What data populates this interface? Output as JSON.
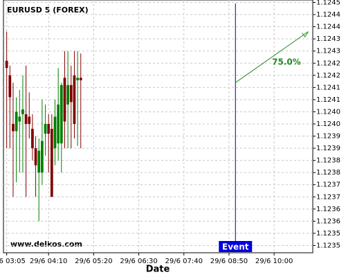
{
  "chart_data": {
    "type": "candlestick",
    "title": "EURUSD 5 (FOREX)",
    "watermark": "www.delkos.com",
    "x_label": "Date",
    "x": [
      "29/6 03:05",
      "29/6 03:10",
      "29/6 03:15",
      "29/6 03:20",
      "29/6 03:25",
      "29/6 03:30",
      "29/6 03:35",
      "29/6 03:40",
      "29/6 03:45",
      "29/6 03:50",
      "29/6 03:55",
      "29/6 04:00",
      "29/6 04:05",
      "29/6 04:10",
      "29/6 04:15",
      "29/6 04:20",
      "29/6 04:25",
      "29/6 04:30",
      "29/6 04:35",
      "29/6 04:40",
      "29/6 04:45",
      "29/6 04:50",
      "29/6 04:55",
      "29/6 05:00"
    ],
    "open": [
      1.12426,
      1.1242,
      1.124,
      1.12397,
      1.12401,
      1.12404,
      1.12404,
      1.12403,
      1.12398,
      1.1239,
      1.1238,
      1.1238,
      1.12396,
      1.124,
      1.12398,
      1.1239,
      1.12392,
      1.12392,
      1.12419,
      1.12408,
      1.12416,
      1.1242,
      1.12418,
      1.12419
    ],
    "high": [
      1.12438,
      1.12424,
      1.12417,
      1.12411,
      1.12414,
      1.1242,
      1.12424,
      1.12413,
      1.12404,
      1.12395,
      1.12394,
      1.1241,
      1.12408,
      1.12404,
      1.12404,
      1.1241,
      1.12423,
      1.12417,
      1.1243,
      1.1243,
      1.12424,
      1.1243,
      1.1243,
      1.12429
    ],
    "low": [
      1.1239,
      1.1239,
      1.1237,
      1.12376,
      1.1238,
      1.1238,
      1.1237,
      1.12394,
      1.12385,
      1.1237,
      1.1236,
      1.12375,
      1.12387,
      1.1238,
      1.1237,
      1.12383,
      1.12385,
      1.1238,
      1.1239,
      1.1239,
      1.1239,
      1.12394,
      1.12391,
      1.1239
    ],
    "close": [
      1.12423,
      1.12411,
      1.12397,
      1.12405,
      1.12403,
      1.12406,
      1.124,
      1.124,
      1.1239,
      1.12383,
      1.12389,
      1.12393,
      1.124,
      1.12396,
      1.1237,
      1.12403,
      1.12408,
      1.12416,
      1.12401,
      1.12416,
      1.12409,
      1.124,
      1.12419,
      1.12418
    ],
    "up_color": "#008000",
    "down_color": "#800000",
    "xlim": [
      "29/6 03:00",
      "29/6 11:00"
    ],
    "xticks": [
      "29/6 03:05",
      "29/6 04:10",
      "29/6 05:20",
      "29/6 06:30",
      "29/6 07:40",
      "29/6 08:50",
      "29/6 10:00"
    ],
    "ylim": [
      1.12347,
      1.12451
    ],
    "yticks": [
      1.1245,
      {
        "value": 1.12445,
        "label": "1.1244"
      },
      1.1244,
      {
        "value": 1.12435,
        "label": "1.1243"
      },
      1.1243,
      {
        "value": 1.12425,
        "label": "1.1242"
      },
      1.1242,
      {
        "value": 1.12415,
        "label": "1.1241"
      },
      1.1241,
      {
        "value": 1.12405,
        "label": "1.1240"
      },
      {
        "value": 1.124,
        "label": "1.1240"
      },
      {
        "value": 1.12395,
        "label": "1.1239"
      },
      1.1239,
      {
        "value": 1.12385,
        "label": "1.1238"
      },
      1.1238,
      {
        "value": 1.12375,
        "label": "1.1237"
      },
      1.1237,
      {
        "value": 1.12365,
        "label": "1.1236"
      },
      1.1236,
      {
        "value": 1.12355,
        "label": "1.1235"
      },
      1.1235
    ],
    "grid": true,
    "event": {
      "label": "Event",
      "x": "29/6 09:00",
      "color": "#0000e0"
    },
    "forecast": {
      "x": [
        "29/6 09:00",
        "29/6 10:53"
      ],
      "values": [
        1.12417,
        1.12438
      ],
      "value": 75.0,
      "value_label": "75.0%",
      "color": "#228b22"
    }
  }
}
